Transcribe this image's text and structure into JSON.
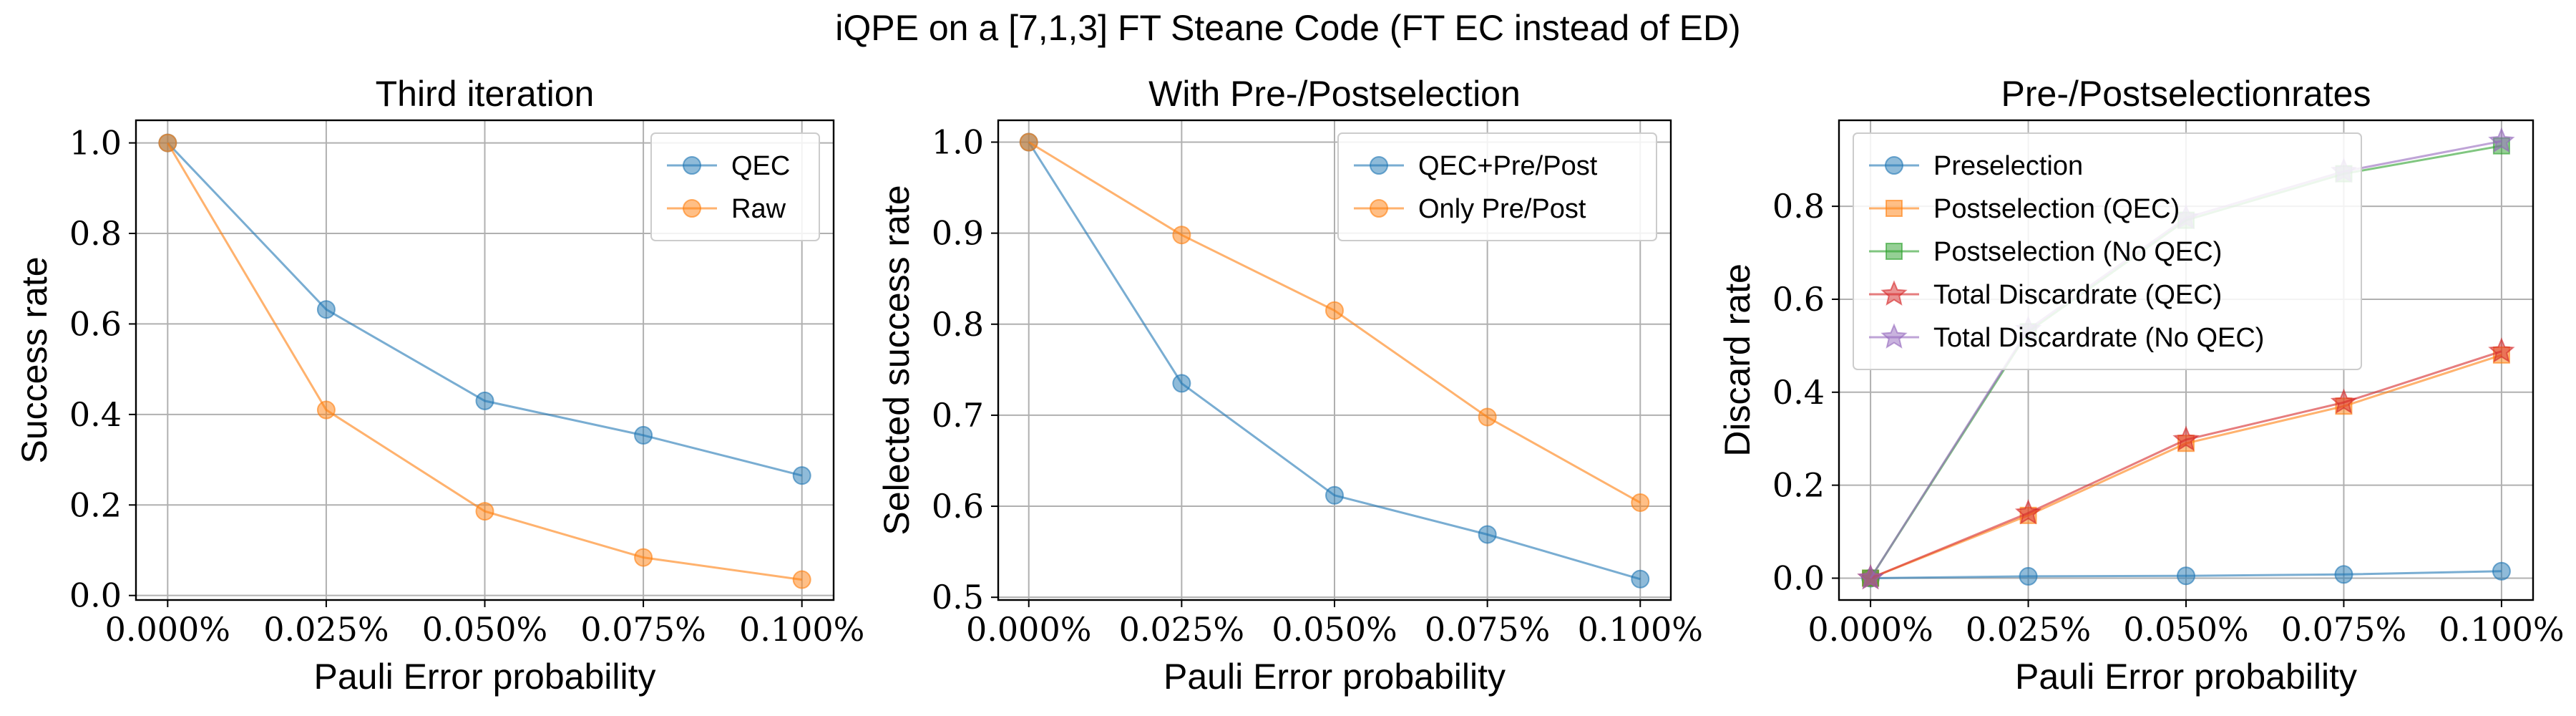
{
  "figure_title": "iQPE on a [7,1,3] FT Steane Code (FT EC instead of ED)",
  "chart_data": [
    {
      "type": "line",
      "title": "Third iteration",
      "xlabel": "Pauli Error probability",
      "ylabel": "Success rate",
      "x": [
        0.0,
        0.025,
        0.05,
        0.075,
        0.1
      ],
      "x_tick_labels": [
        "0.000%",
        "0.025%",
        "0.050%",
        "0.075%",
        "0.100%"
      ],
      "xlim": [
        -0.005,
        0.105
      ],
      "ylim": [
        -0.01,
        1.05
      ],
      "y_ticks": [
        0.0,
        0.2,
        0.4,
        0.6,
        0.8,
        1.0
      ],
      "y_tick_labels": [
        "0.0",
        "0.2",
        "0.4",
        "0.6",
        "0.8",
        "1.0"
      ],
      "grid": true,
      "legend_position": "upper-right",
      "series": [
        {
          "name": "QEC",
          "color": "#1f77b4",
          "marker": "circle",
          "values": [
            1.0,
            0.632,
            0.43,
            0.354,
            0.265
          ]
        },
        {
          "name": "Raw",
          "color": "#ff7f0e",
          "marker": "circle",
          "values": [
            1.0,
            0.41,
            0.186,
            0.084,
            0.035
          ]
        }
      ]
    },
    {
      "type": "line",
      "title": "With Pre-/Postselection",
      "xlabel": "Pauli Error probability",
      "ylabel": "Selected success rate",
      "x": [
        0.0,
        0.025,
        0.05,
        0.075,
        0.1
      ],
      "x_tick_labels": [
        "0.000%",
        "0.025%",
        "0.050%",
        "0.075%",
        "0.100%"
      ],
      "xlim": [
        -0.005,
        0.105
      ],
      "ylim": [
        0.497,
        1.024
      ],
      "y_ticks": [
        0.5,
        0.6,
        0.7,
        0.8,
        0.9,
        1.0
      ],
      "y_tick_labels": [
        "0.5",
        "0.6",
        "0.7",
        "0.8",
        "0.9",
        "1.0"
      ],
      "grid": true,
      "legend_position": "upper-right",
      "series": [
        {
          "name": "QEC+Pre/Post",
          "color": "#1f77b4",
          "marker": "circle",
          "values": [
            1.0,
            0.735,
            0.612,
            0.569,
            0.52
          ]
        },
        {
          "name": "Only Pre/Post",
          "color": "#ff7f0e",
          "marker": "circle",
          "values": [
            1.0,
            0.898,
            0.815,
            0.698,
            0.604
          ]
        }
      ]
    },
    {
      "type": "line",
      "title": "Pre-/Postselectionrates",
      "xlabel": "Pauli Error probability",
      "ylabel": "Discard rate",
      "x": [
        0.0,
        0.025,
        0.05,
        0.075,
        0.1
      ],
      "x_tick_labels": [
        "0.000%",
        "0.025%",
        "0.050%",
        "0.075%",
        "0.100%"
      ],
      "xlim": [
        -0.005,
        0.105
      ],
      "ylim": [
        -0.047,
        0.985
      ],
      "y_ticks": [
        0.0,
        0.2,
        0.4,
        0.6,
        0.8
      ],
      "y_tick_labels": [
        "0.0",
        "0.2",
        "0.4",
        "0.6",
        "0.8"
      ],
      "grid": true,
      "legend_position": "upper-left",
      "series": [
        {
          "name": "Preselection",
          "color": "#1f77b4",
          "marker": "circle",
          "values": [
            0.0,
            0.004,
            0.005,
            0.008,
            0.015
          ]
        },
        {
          "name": "Postselection (QEC)",
          "color": "#ff7f0e",
          "marker": "square",
          "values": [
            0.0,
            0.135,
            0.29,
            0.37,
            0.48
          ]
        },
        {
          "name": "Postselection (No QEC)",
          "color": "#2ca02c",
          "marker": "square",
          "values": [
            0.0,
            0.53,
            0.77,
            0.87,
            0.93
          ]
        },
        {
          "name": "Total Discardrate (QEC)",
          "color": "#d62728",
          "marker": "star",
          "values": [
            0.0,
            0.14,
            0.298,
            0.378,
            0.488
          ]
        },
        {
          "name": "Total Discardrate (No QEC)",
          "color": "#9467bd",
          "marker": "star",
          "values": [
            0.0,
            0.535,
            0.775,
            0.875,
            0.94
          ]
        }
      ]
    }
  ]
}
